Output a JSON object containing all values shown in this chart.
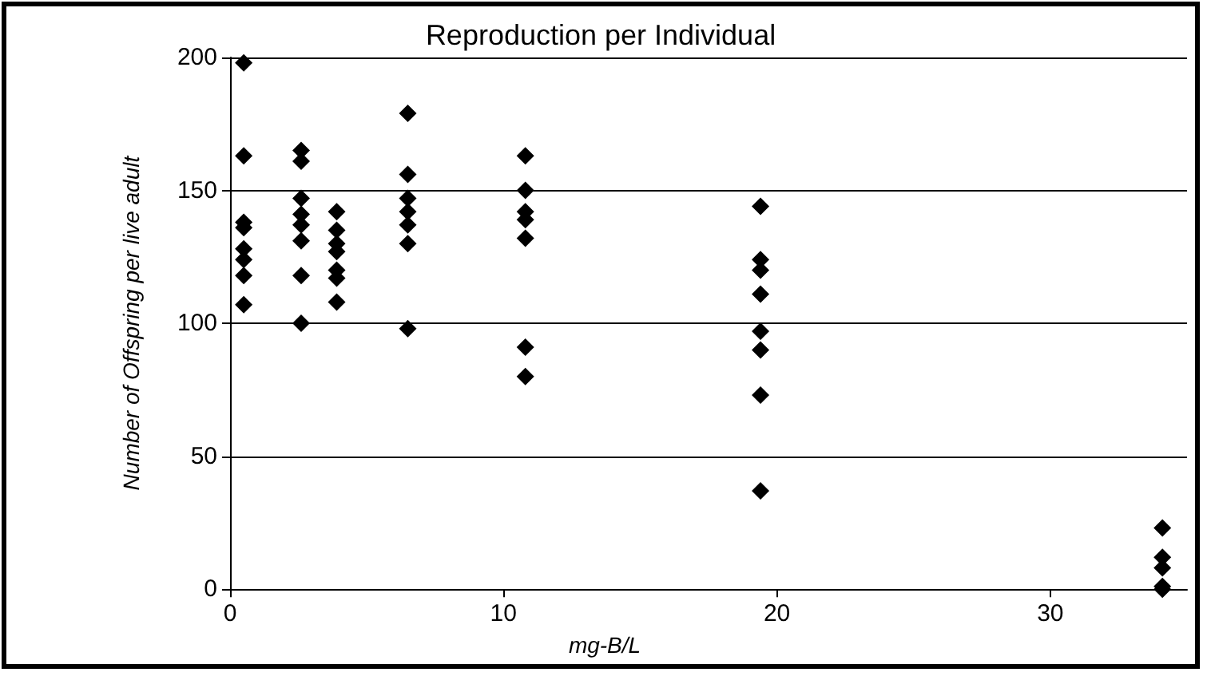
{
  "chart_data": {
    "type": "scatter",
    "title": "Reproduction per Individual",
    "xlabel": "mg-B/L",
    "ylabel": "Number of Offspring per live adult",
    "x": [
      0.5,
      0.5,
      0.5,
      0.5,
      0.5,
      0.5,
      0.5,
      0.5,
      2.6,
      2.6,
      2.6,
      2.6,
      2.6,
      2.6,
      2.6,
      2.6,
      3.9,
      3.9,
      3.9,
      3.9,
      3.9,
      3.9,
      3.9,
      6.5,
      6.5,
      6.5,
      6.5,
      6.5,
      6.5,
      6.5,
      10.8,
      10.8,
      10.8,
      10.8,
      10.8,
      10.8,
      10.8,
      19.4,
      19.4,
      19.4,
      19.4,
      19.4,
      19.4,
      19.4,
      19.4,
      34.1,
      34.1,
      34.1,
      34.1,
      34.1
    ],
    "values": [
      198,
      163,
      138,
      136,
      128,
      124,
      118,
      107,
      165,
      161,
      147,
      141,
      137,
      131,
      118,
      100,
      142,
      135,
      130,
      127,
      120,
      117,
      108,
      179,
      156,
      147,
      142,
      137,
      130,
      98,
      163,
      150,
      142,
      139,
      132,
      91,
      80,
      144,
      124,
      120,
      111,
      97,
      90,
      73,
      37,
      23,
      12,
      8,
      1,
      0
    ],
    "color": "#000000",
    "marker": "diamond",
    "xlim": [
      0,
      35
    ],
    "xticks": [
      0,
      10,
      20,
      30
    ],
    "ylim": [
      0,
      200
    ],
    "yticks": [
      0,
      50,
      100,
      150,
      200
    ],
    "grid": "y"
  }
}
